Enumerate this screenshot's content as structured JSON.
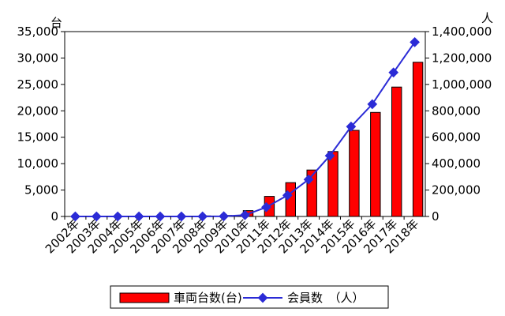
{
  "chart_data": {
    "type": "bar+line",
    "categories": [
      "2002年",
      "2003年",
      "2004年",
      "2005年",
      "2006年",
      "2007年",
      "2008年",
      "2009年",
      "2010年",
      "2011年",
      "2012年",
      "2013年",
      "2014年",
      "2015年",
      "2016年",
      "2017年",
      "2018年"
    ],
    "series": [
      {
        "name": "車両台数(台)",
        "type": "bar",
        "axis": "left",
        "color": "#ff0000",
        "values": [
          0,
          0,
          0,
          0,
          0,
          0,
          100,
          200,
          1100,
          3800,
          6400,
          8800,
          12300,
          16300,
          19700,
          24500,
          29200
        ]
      },
      {
        "name": "会員数　（人）",
        "type": "line",
        "axis": "right",
        "color": "#2b2bd6",
        "values": [
          0,
          0,
          0,
          0,
          0,
          0,
          0,
          2000,
          10000,
          70000,
          160000,
          280000,
          460000,
          680000,
          850000,
          1090000,
          1320000
        ]
      }
    ],
    "y_left": {
      "unit": "台",
      "range": [
        0,
        35000
      ],
      "ticks": [
        "0",
        "5,000",
        "10,000",
        "15,000",
        "20,000",
        "25,000",
        "30,000",
        "35,000"
      ]
    },
    "y_right": {
      "unit": "人",
      "range": [
        0,
        1400000
      ],
      "ticks": [
        "0",
        "200,000",
        "400,000",
        "600,000",
        "800,000",
        "1,000,000",
        "1,200,000",
        "1,400,000"
      ]
    },
    "grid": false,
    "legend": "bottom"
  }
}
